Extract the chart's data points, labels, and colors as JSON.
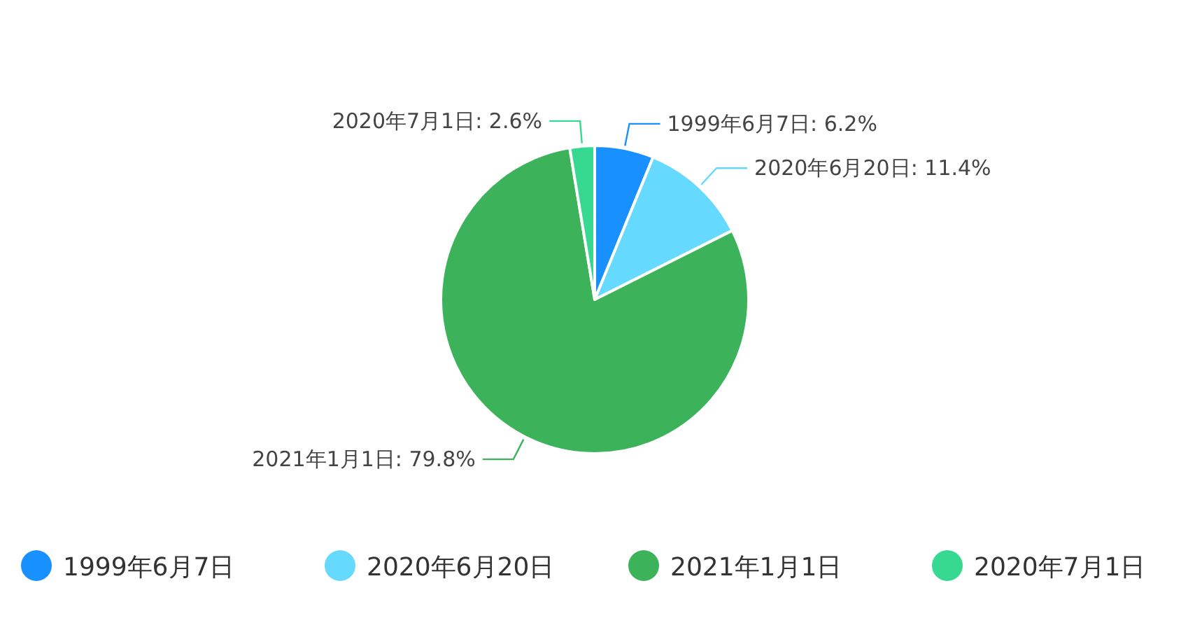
{
  "chart_data": {
    "type": "pie",
    "categories": [
      "1999年6月7日",
      "2020年6月20日",
      "2021年1月1日",
      "2020年7月1日"
    ],
    "values": [
      6.2,
      11.4,
      79.8,
      2.6
    ],
    "value_labels": [
      "1999年6月7日: 6.2%",
      "2020年6月20日: 11.4%",
      "2021年1月1日: 79.8%",
      "2020年7月1日: 2.6%"
    ],
    "colors": [
      "#1890ff",
      "#66d9ff",
      "#3cb35a",
      "#36d98f"
    ],
    "legend": "bottom"
  }
}
